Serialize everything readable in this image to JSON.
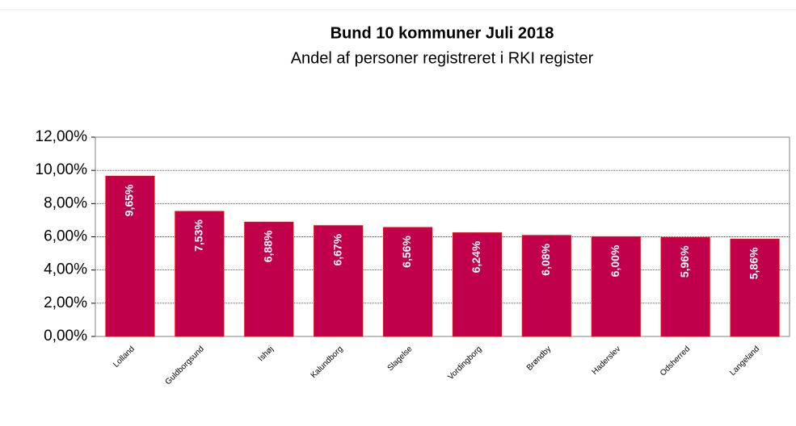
{
  "chart_data": {
    "type": "bar",
    "title": "Bund 10 kommuner Juli 2018",
    "subtitle": "Andel af personer registreret i RKI register",
    "categories": [
      "Lolland",
      "Guldborgsund",
      "Ishøj",
      "Kalundborg",
      "Slagelse",
      "Vordingborg",
      "Brøndby",
      "Haderslev",
      "Odsherred",
      "Langeland"
    ],
    "values": [
      9.65,
      7.53,
      6.88,
      6.67,
      6.56,
      6.24,
      6.08,
      6.0,
      5.96,
      5.86
    ],
    "value_labels": [
      "9,65%",
      "7,53%",
      "6,88%",
      "6,67%",
      "6,56%",
      "6,24%",
      "6,08%",
      "6,00%",
      "5,96%",
      "5,86%"
    ],
    "color": "#c0004a",
    "ylim": [
      0,
      12
    ],
    "yticks": [
      {
        "value": 0,
        "label": "0,00%"
      },
      {
        "value": 2,
        "label": "2,00%"
      },
      {
        "value": 4,
        "label": "4,00%"
      },
      {
        "value": 6,
        "label": "6,00%"
      },
      {
        "value": 8,
        "label": "8,00%"
      },
      {
        "value": 10,
        "label": "10,00%"
      },
      {
        "value": 12,
        "label": "12,00%"
      }
    ],
    "grid": true
  }
}
